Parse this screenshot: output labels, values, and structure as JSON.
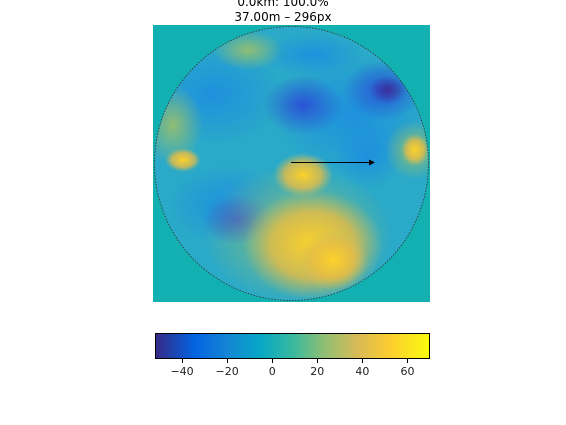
{
  "figure": {
    "title_line1": "0.0km: 100.0%",
    "title_line2": "37.00m – 296px"
  },
  "map": {
    "background_color": "#12b0b0",
    "colormap": "parula",
    "value_range": [
      -52,
      70
    ],
    "arrow_direction": "right"
  },
  "colorbar": {
    "range": [
      -52,
      70
    ],
    "ticks": [
      {
        "value": -40,
        "label": "−40"
      },
      {
        "value": -20,
        "label": "−20"
      },
      {
        "value": 0,
        "label": "0"
      },
      {
        "value": 20,
        "label": "20"
      },
      {
        "value": 40,
        "label": "40"
      },
      {
        "value": 60,
        "label": "60"
      }
    ]
  }
}
